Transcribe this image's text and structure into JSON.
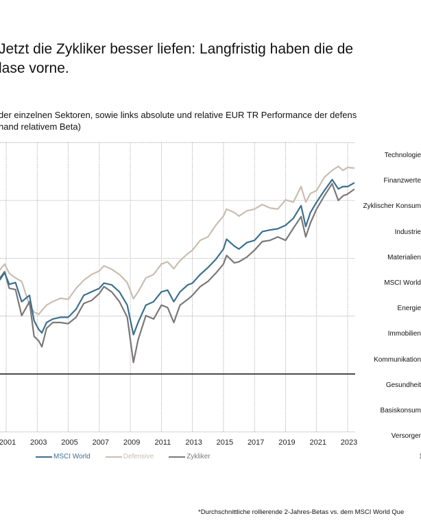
{
  "header": {
    "title_line1": "Jetzt die Zykliker besser liefen: Langfristig haben die de",
    "title_line2": "lase vorne.",
    "subtitle_line1": "der einzelnen Sektoren, sowie links absolute und relative EUR TR Performance der defens",
    "subtitle_line2": "hand relativem Beta)"
  },
  "sector_labels": [
    "Technologie",
    "Finanzwerte",
    "Zyklischer Konsum",
    "Industrie",
    "Materialien",
    "MSCI World",
    "Energie",
    "Immobilien",
    "Kommunikation",
    "Gesundheit",
    "Basiskonsum",
    "Versorger"
  ],
  "footnote": "*Durchschnittliche rollierende 2-Jahres-Betas vs. dem MSCI World Que",
  "clipped_glyph": "1",
  "colors": {
    "msci_world": "#3a6f8f",
    "defensive": "#c9bdb0",
    "zykliker": "#7b7777",
    "grid": "#9a9a9a",
    "baseline": "#111111"
  },
  "chart_data": {
    "type": "line",
    "title": "",
    "xlabel": "",
    "ylabel": "",
    "x_ticks": [
      "2001",
      "2003",
      "2005",
      "2007",
      "2009",
      "2011",
      "2013",
      "2015",
      "2017",
      "2019",
      "2021",
      "2023"
    ],
    "xlim": [
      2000.6,
      2023.5
    ],
    "ylim": [
      -1,
      4
    ],
    "y_gridlines": [
      -1,
      1,
      2,
      3,
      4
    ],
    "baseline": 0,
    "y_units": "index grid units (axis labels not visible)",
    "grid": true,
    "legend_position": "bottom",
    "series": [
      {
        "name": "MSCI World",
        "key": "msci_world",
        "x": [
          2000.6,
          2000.9,
          2001.2,
          2001.6,
          2002.0,
          2002.5,
          2002.8,
          2003.1,
          2003.3,
          2003.6,
          2004.0,
          2004.5,
          2005.0,
          2005.5,
          2006.0,
          2006.5,
          2007.0,
          2007.3,
          2007.8,
          2008.3,
          2008.8,
          2009.2,
          2009.5,
          2010.0,
          2010.5,
          2011.0,
          2011.4,
          2011.8,
          2012.2,
          2012.7,
          2013.0,
          2013.5,
          2014.0,
          2014.5,
          2015.0,
          2015.2,
          2015.7,
          2016.0,
          2016.5,
          2017.0,
          2017.5,
          2018.0,
          2018.5,
          2019.0,
          2019.5,
          2020.0,
          2020.3,
          2020.6,
          2021.0,
          2021.5,
          2022.0,
          2022.4,
          2022.7,
          2023.0,
          2023.4
        ],
        "y": [
          1.63,
          1.75,
          1.55,
          1.58,
          1.25,
          1.36,
          0.92,
          0.77,
          0.71,
          0.89,
          0.95,
          0.98,
          0.98,
          1.12,
          1.36,
          1.42,
          1.48,
          1.57,
          1.54,
          1.42,
          1.19,
          0.68,
          0.89,
          1.19,
          1.25,
          1.42,
          1.45,
          1.25,
          1.42,
          1.54,
          1.57,
          1.72,
          1.84,
          1.98,
          2.16,
          2.33,
          2.21,
          2.16,
          2.27,
          2.31,
          2.46,
          2.49,
          2.51,
          2.57,
          2.69,
          2.91,
          2.55,
          2.79,
          2.97,
          3.17,
          3.36,
          3.2,
          3.24,
          3.24,
          3.3
        ]
      },
      {
        "name": "Defensive",
        "key": "defensive",
        "x": [
          2000.6,
          2000.9,
          2001.2,
          2001.6,
          2002.0,
          2002.5,
          2002.8,
          2003.1,
          2003.3,
          2003.6,
          2004.0,
          2004.5,
          2005.0,
          2005.5,
          2006.0,
          2006.5,
          2007.0,
          2007.3,
          2007.8,
          2008.3,
          2008.8,
          2009.2,
          2009.5,
          2010.0,
          2010.5,
          2011.0,
          2011.4,
          2011.8,
          2012.2,
          2012.7,
          2013.0,
          2013.5,
          2014.0,
          2014.5,
          2015.0,
          2015.2,
          2015.7,
          2016.0,
          2016.5,
          2017.0,
          2017.5,
          2018.0,
          2018.5,
          2019.0,
          2019.5,
          2020.0,
          2020.3,
          2020.6,
          2021.0,
          2021.5,
          2022.0,
          2022.4,
          2022.7,
          2023.0,
          2023.4
        ],
        "y": [
          1.8,
          1.9,
          1.74,
          1.66,
          1.6,
          1.19,
          1.07,
          1.03,
          1.1,
          1.19,
          1.25,
          1.31,
          1.29,
          1.48,
          1.62,
          1.72,
          1.78,
          1.87,
          1.81,
          1.72,
          1.58,
          1.3,
          1.42,
          1.66,
          1.72,
          1.9,
          1.94,
          1.82,
          1.96,
          2.08,
          2.14,
          2.31,
          2.37,
          2.57,
          2.73,
          2.85,
          2.79,
          2.73,
          2.82,
          2.85,
          2.93,
          2.87,
          2.85,
          3.01,
          2.97,
          3.24,
          2.97,
          3.12,
          3.17,
          3.4,
          3.52,
          3.59,
          3.52,
          3.57,
          3.56
        ]
      },
      {
        "name": "Zykliker",
        "key": "zykliker",
        "x": [
          2000.6,
          2000.9,
          2001.2,
          2001.6,
          2002.0,
          2002.5,
          2002.8,
          2003.1,
          2003.3,
          2003.6,
          2004.0,
          2004.5,
          2005.0,
          2005.5,
          2006.0,
          2006.5,
          2007.0,
          2007.3,
          2007.8,
          2008.3,
          2008.8,
          2009.2,
          2009.5,
          2010.0,
          2010.5,
          2011.0,
          2011.4,
          2011.8,
          2012.2,
          2012.7,
          2013.0,
          2013.5,
          2014.0,
          2014.5,
          2015.0,
          2015.2,
          2015.7,
          2016.0,
          2016.5,
          2017.0,
          2017.5,
          2018.0,
          2018.5,
          2019.0,
          2019.5,
          2020.0,
          2020.3,
          2020.6,
          2021.0,
          2021.5,
          2022.0,
          2022.4,
          2022.7,
          2023.0,
          2023.4
        ],
        "y": [
          1.66,
          1.77,
          1.48,
          1.46,
          1.01,
          1.25,
          0.65,
          0.57,
          0.47,
          0.79,
          0.89,
          0.89,
          0.87,
          0.98,
          1.22,
          1.27,
          1.39,
          1.51,
          1.42,
          1.25,
          0.98,
          0.2,
          0.59,
          1.01,
          0.95,
          1.19,
          1.15,
          0.89,
          1.19,
          1.29,
          1.36,
          1.51,
          1.6,
          1.74,
          1.9,
          2.05,
          1.92,
          1.94,
          2.02,
          2.14,
          2.29,
          2.31,
          2.37,
          2.31,
          2.52,
          2.72,
          2.37,
          2.61,
          2.85,
          3.08,
          3.29,
          3.0,
          3.08,
          3.11,
          3.19
        ]
      }
    ]
  },
  "legend": [
    {
      "label": "MSCI World",
      "key": "msci_world"
    },
    {
      "label": "Defensive",
      "key": "defensive"
    },
    {
      "label": "Zykliker",
      "key": "zykliker"
    }
  ]
}
